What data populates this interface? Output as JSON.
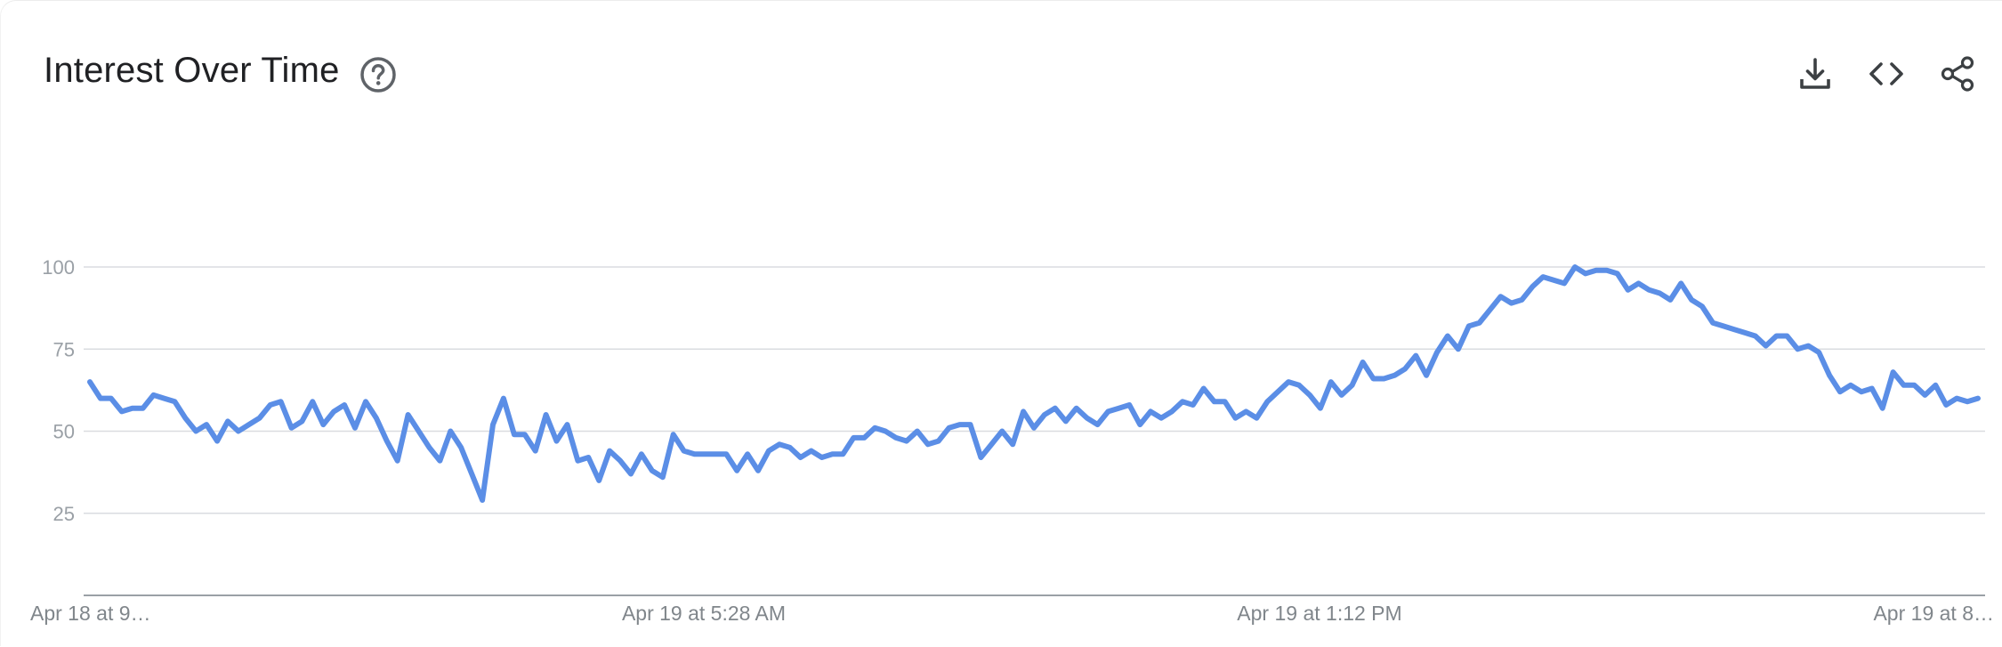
{
  "header": {
    "title": "Interest Over Time",
    "help_icon": "help-circle-icon",
    "tools": [
      {
        "icon": "download-icon"
      },
      {
        "icon": "embed-code-icon"
      },
      {
        "icon": "share-icon"
      }
    ]
  },
  "colors": {
    "line": "#5b8ee6",
    "grid": "#dadce0",
    "axis": "#9aa0a6"
  },
  "chart_data": {
    "type": "line",
    "title": "Interest Over Time",
    "xlabel": "",
    "ylabel": "",
    "ylim": [
      0,
      100
    ],
    "yticks": [
      25,
      50,
      75,
      100
    ],
    "x_tick_labels": [
      "Apr 18 at 9…",
      "Apr 19 at 5:28 AM",
      "Apr 19 at 1:12 PM",
      "Apr 19 at 8…"
    ],
    "grid": true,
    "legend": "none",
    "series": [
      {
        "values": [
          65,
          60,
          60,
          56,
          57,
          57,
          61,
          60,
          59,
          54,
          50,
          52,
          47,
          53,
          50,
          52,
          54,
          58,
          59,
          51,
          53,
          59,
          52,
          56,
          58,
          51,
          59,
          54,
          47,
          41,
          55,
          50,
          45,
          41,
          50,
          45,
          37,
          29,
          52,
          60,
          49,
          49,
          44,
          55,
          47,
          52,
          41,
          42,
          35,
          44,
          41,
          37,
          43,
          38,
          36,
          49,
          44,
          43,
          43,
          43,
          43,
          38,
          43,
          38,
          44,
          46,
          45,
          42,
          44,
          42,
          43,
          43,
          48,
          48,
          51,
          50,
          48,
          47,
          50,
          46,
          47,
          51,
          52,
          52,
          42,
          46,
          50,
          46,
          56,
          51,
          55,
          57,
          53,
          57,
          54,
          52,
          56,
          57,
          58,
          52,
          56,
          54,
          56,
          59,
          58,
          63,
          59,
          59,
          54,
          56,
          54,
          59,
          62,
          65,
          64,
          61,
          57,
          65,
          61,
          64,
          71,
          66,
          66,
          67,
          69,
          73,
          67,
          74,
          79,
          75,
          82,
          83,
          87,
          91,
          89,
          90,
          94,
          97,
          96,
          95,
          100,
          98,
          99,
          99,
          98,
          93,
          95,
          93,
          92,
          90,
          95,
          90,
          88,
          83,
          82,
          81,
          80,
          79,
          76,
          79,
          79,
          75,
          76,
          74,
          67,
          62,
          64,
          62,
          63,
          57,
          68,
          64,
          64,
          61,
          64,
          58,
          60,
          59,
          60
        ]
      }
    ]
  }
}
